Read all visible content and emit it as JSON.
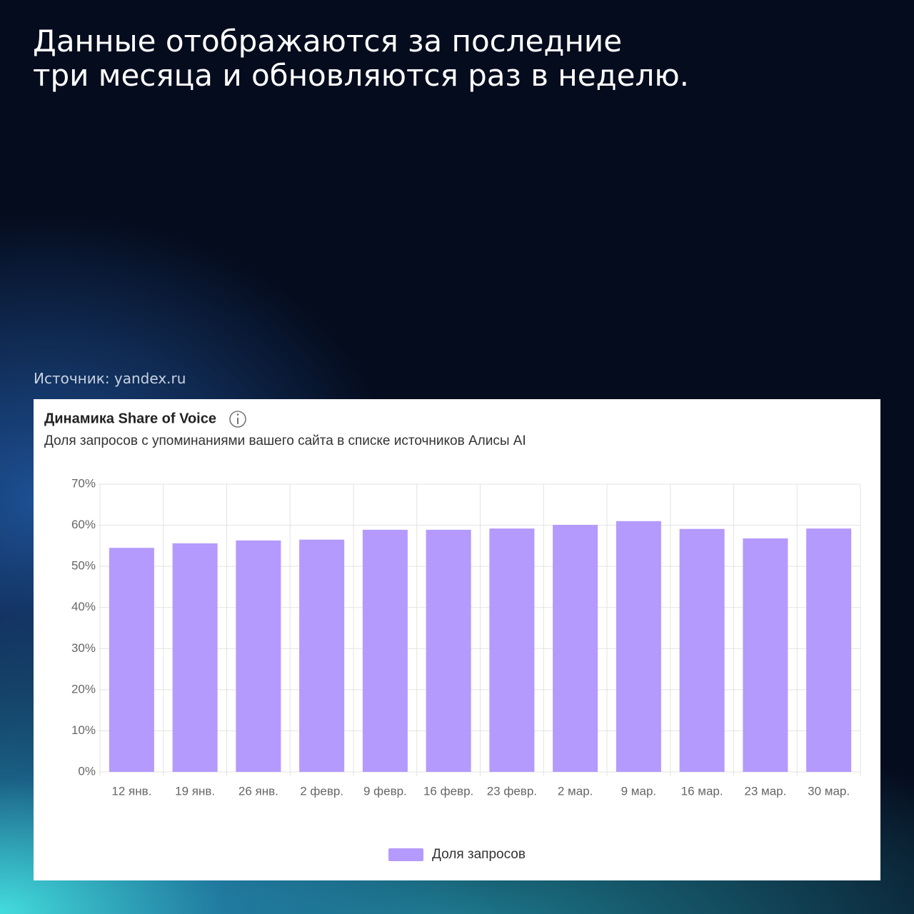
{
  "headline": [
    "Данные отображаются за последние",
    "три месяца и обновляются раз в неделю."
  ],
  "source": "Источник: yandex.ru",
  "chart_data": {
    "type": "bar",
    "title": "Динамика Share of Voice",
    "subtitle": "Доля запросов с упоминаниями вашего сайта в списке источников Алисы AI",
    "categories": [
      "12 янв.",
      "19 янв.",
      "26 янв.",
      "2 февр.",
      "9 февр.",
      "16 февр.",
      "23 февр.",
      "2 мар.",
      "9 мар.",
      "16 мар.",
      "23 мар.",
      "30 мар."
    ],
    "series": [
      {
        "name": "Доля запросов",
        "color": "#b49afc",
        "values": [
          54.5,
          55.6,
          56.3,
          56.5,
          58.9,
          58.9,
          59.2,
          60.1,
          61.0,
          59.1,
          56.8,
          59.2
        ]
      }
    ],
    "ylim": [
      0,
      70
    ],
    "yticks": [
      {
        "value": 0,
        "label": "0%"
      },
      {
        "value": 10,
        "label": "10%"
      },
      {
        "value": 20,
        "label": "20%"
      },
      {
        "value": 30,
        "label": "30%"
      },
      {
        "value": 40,
        "label": "40%"
      },
      {
        "value": 50,
        "label": "50%"
      },
      {
        "value": 60,
        "label": "60%"
      },
      {
        "value": 70,
        "label": "70%"
      }
    ],
    "grid": true,
    "legend": "bottom"
  }
}
